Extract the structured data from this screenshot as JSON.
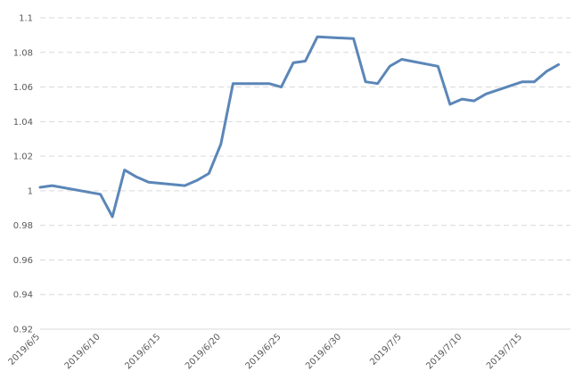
{
  "chart_data": {
    "type": "line",
    "title": "",
    "xlabel": "",
    "ylabel": "",
    "ylim": [
      0.92,
      1.1
    ],
    "yticks": [
      "0.92",
      "0.94",
      "0.96",
      "0.98",
      "1",
      "1.02",
      "1.04",
      "1.06",
      "1.08",
      "1.1"
    ],
    "xrange": [
      "2019/6/5",
      "2019/7/19"
    ],
    "xtick_labels": [
      "2019/6/5",
      "2019/6/10",
      "2019/6/15",
      "2019/6/20",
      "2019/6/25",
      "2019/6/30",
      "2019/7/5",
      "2019/7/10",
      "2019/7/15"
    ],
    "grid": true,
    "legend": "none",
    "series": [
      {
        "color": "#5b86b8",
        "x": [
          "2019/6/5",
          "2019/6/6",
          "2019/6/10",
          "2019/6/11",
          "2019/6/12",
          "2019/6/13",
          "2019/6/14",
          "2019/6/17",
          "2019/6/18",
          "2019/6/19",
          "2019/6/20",
          "2019/6/21",
          "2019/6/24",
          "2019/6/25",
          "2019/6/26",
          "2019/6/27",
          "2019/6/28",
          "2019/7/1",
          "2019/7/2",
          "2019/7/3",
          "2019/7/4",
          "2019/7/5",
          "2019/7/8",
          "2019/7/9",
          "2019/7/10",
          "2019/7/11",
          "2019/7/12",
          "2019/7/15",
          "2019/7/16",
          "2019/7/17",
          "2019/7/18"
        ],
        "values": [
          1.002,
          1.003,
          0.998,
          0.985,
          1.012,
          1.008,
          1.005,
          1.003,
          1.006,
          1.01,
          1.027,
          1.062,
          1.062,
          1.06,
          1.074,
          1.075,
          1.089,
          1.088,
          1.063,
          1.062,
          1.072,
          1.076,
          1.072,
          1.05,
          1.053,
          1.052,
          1.056,
          1.063,
          1.063,
          1.069,
          1.073
        ]
      }
    ]
  }
}
